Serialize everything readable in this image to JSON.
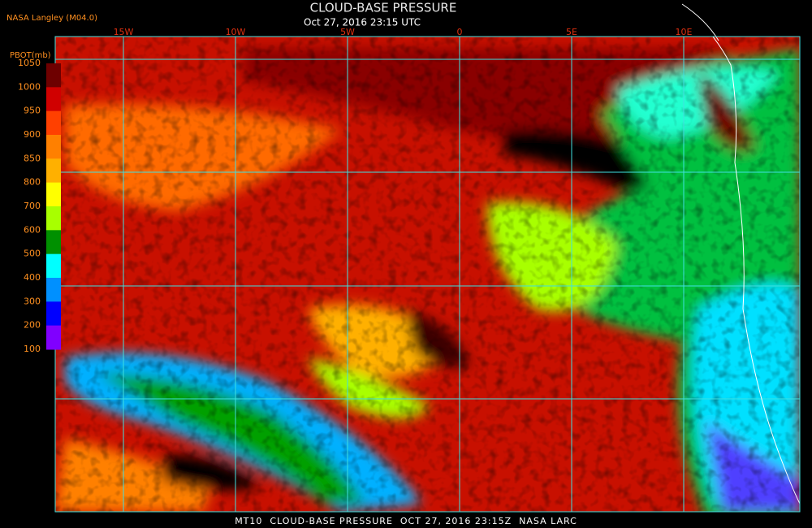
{
  "header": {
    "source": "NASA Langley (M04.0)",
    "title": "CLOUD-BASE PRESSURE",
    "datetime": "Oct 27, 2016 23:15 UTC"
  },
  "colorbar": {
    "title": "PBOT(mb)",
    "ticks": [
      1050,
      1000,
      950,
      900,
      850,
      800,
      700,
      600,
      500,
      400,
      300,
      200,
      100
    ],
    "colors": [
      "#6e0000",
      "#d00000",
      "#ff4000",
      "#ff8000",
      "#ffb000",
      "#ffff00",
      "#a8ff00",
      "#009000",
      "#00ffff",
      "#0090ff",
      "#0000ff",
      "#8000ff"
    ]
  },
  "longitude_labels": [
    "15W",
    "10W",
    "5W",
    "0",
    "5E",
    "10E"
  ],
  "footer": "MT10  CLOUD-BASE PRESSURE  OCT 27, 2016 23:15Z  NASA LARC"
}
